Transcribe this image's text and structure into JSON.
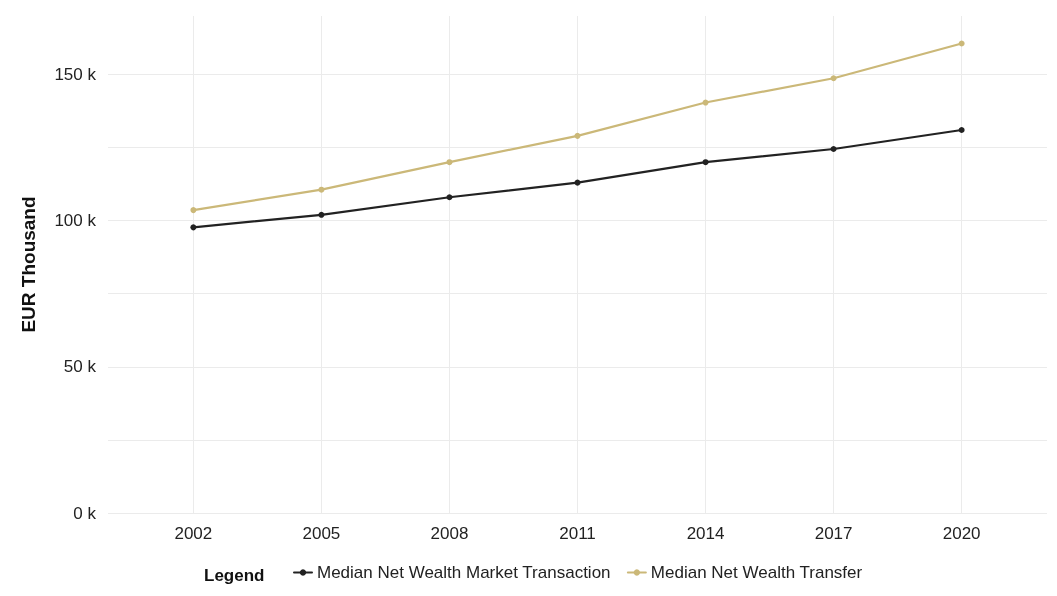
{
  "chart_data": {
    "type": "line",
    "ylabel": "EUR Thousand",
    "legend_title": "Legend",
    "x": [
      2002,
      2005,
      2008,
      2011,
      2014,
      2017,
      2020
    ],
    "series": [
      {
        "name": "Median Net Wealth Market Transaction",
        "color": "#222222",
        "values": [
          97.7,
          102,
          108,
          113,
          120,
          124.5,
          131
        ]
      },
      {
        "name": "Median Net Wealth Transfer",
        "color": "#cbb878",
        "values": [
          103.6,
          110.6,
          120,
          129,
          140.4,
          148.7,
          160.6
        ]
      }
    ],
    "xlim": [
      2000,
      2022
    ],
    "xticks": [
      2002,
      2005,
      2008,
      2011,
      2014,
      2017,
      2020
    ],
    "ylim": [
      0,
      170
    ],
    "yticks": [
      {
        "value": 0,
        "label": "0 k"
      },
      {
        "value": 25,
        "label": null
      },
      {
        "value": 50,
        "label": "50 k"
      },
      {
        "value": 75,
        "label": null
      },
      {
        "value": 100,
        "label": "100 k"
      },
      {
        "value": 125,
        "label": null
      },
      {
        "value": 150,
        "label": "150 k"
      }
    ],
    "grid": true,
    "legend": "bottom",
    "marker": "circle",
    "line_style": "solid"
  }
}
